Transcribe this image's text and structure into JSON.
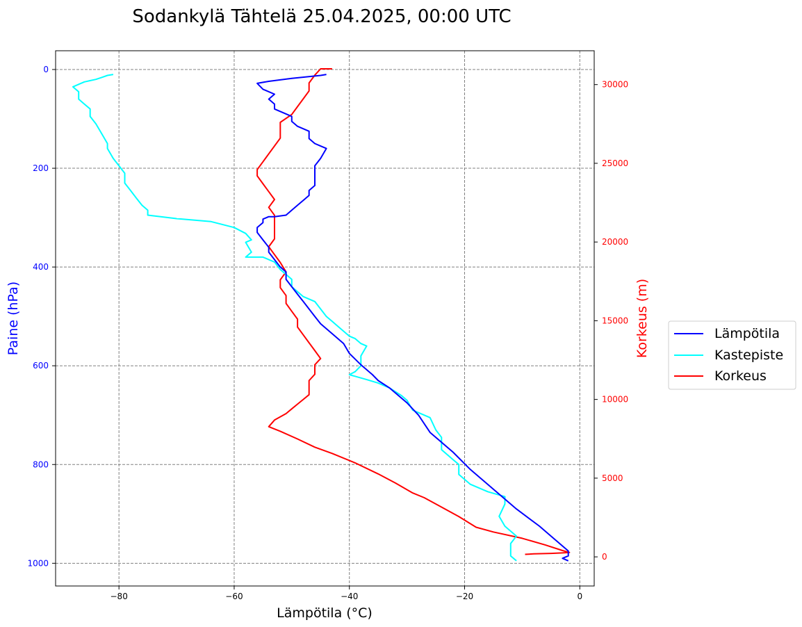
{
  "chart_data": {
    "type": "line",
    "title": "Sodankylä Tähtelä 25.04.2025, 00:00 UTC",
    "xlabel": "Lämpötila (°C)",
    "ylabel": "Paine (hPa)",
    "ylabel_right": "Korkeus (m)",
    "xlim": [
      -91,
      2.5
    ],
    "ylim": [
      1046,
      -38
    ],
    "ylim_right": [
      -1850,
      32150
    ],
    "y_inverted": true,
    "grid": true,
    "legend_position": "outside-right",
    "x_ticks": [
      -80,
      -60,
      -40,
      -20,
      0
    ],
    "x_tick_labels": [
      "−80",
      "−60",
      "−40",
      "−20",
      "0"
    ],
    "y_ticks": [
      0,
      200,
      400,
      600,
      800,
      1000
    ],
    "y_tick_labels": [
      "0",
      "200",
      "400",
      "600",
      "800",
      "1000"
    ],
    "y2_ticks": [
      0,
      5000,
      10000,
      15000,
      20000,
      25000,
      30000
    ],
    "y2_tick_labels": [
      "0",
      "5000",
      "10000",
      "15000",
      "20000",
      "25000",
      "30000"
    ],
    "colors": {
      "left_axis": "#0000ff",
      "right_axis": "#ff0000"
    },
    "series": [
      {
        "name": "Lämpötila",
        "color": "#0000ff",
        "axis": "pressure",
        "points": [
          [
            -2,
            995
          ],
          [
            -3,
            990
          ],
          [
            -2,
            985
          ],
          [
            -2,
            975
          ],
          [
            -3,
            965
          ],
          [
            -5,
            945
          ],
          [
            -7,
            925
          ],
          [
            -11,
            890
          ],
          [
            -15,
            850
          ],
          [
            -19,
            810
          ],
          [
            -22,
            775
          ],
          [
            -26,
            735
          ],
          [
            -28,
            700
          ],
          [
            -30,
            675
          ],
          [
            -33,
            645
          ],
          [
            -35,
            630
          ],
          [
            -36,
            618
          ],
          [
            -38,
            598
          ],
          [
            -40,
            575
          ],
          [
            -41,
            555
          ],
          [
            -43,
            535
          ],
          [
            -45,
            515
          ],
          [
            -46,
            500
          ],
          [
            -47,
            485
          ],
          [
            -48,
            470
          ],
          [
            -49,
            455
          ],
          [
            -50,
            440
          ],
          [
            -51,
            425
          ],
          [
            -51,
            410
          ],
          [
            -52,
            400
          ],
          [
            -53,
            385
          ],
          [
            -54,
            370
          ],
          [
            -54,
            360
          ],
          [
            -55,
            345
          ],
          [
            -56,
            330
          ],
          [
            -56,
            320
          ],
          [
            -55,
            310
          ],
          [
            -55,
            303
          ],
          [
            -54,
            298
          ],
          [
            -53,
            298
          ],
          [
            -51,
            295
          ],
          [
            -50,
            285
          ],
          [
            -49,
            275
          ],
          [
            -48,
            265
          ],
          [
            -47,
            255
          ],
          [
            -47,
            245
          ],
          [
            -46,
            235
          ],
          [
            -46,
            220
          ],
          [
            -46,
            205
          ],
          [
            -46,
            195
          ],
          [
            -45,
            180
          ],
          [
            -44,
            160
          ],
          [
            -45,
            155
          ],
          [
            -46,
            150
          ],
          [
            -47,
            140
          ],
          [
            -47,
            125
          ],
          [
            -49,
            115
          ],
          [
            -50,
            105
          ],
          [
            -50,
            95
          ],
          [
            -51,
            90
          ],
          [
            -53,
            80
          ],
          [
            -53,
            70
          ],
          [
            -54,
            60
          ],
          [
            -53,
            50
          ],
          [
            -55,
            40
          ],
          [
            -56,
            28
          ],
          [
            -54,
            24
          ],
          [
            -50,
            18
          ],
          [
            -45,
            12
          ],
          [
            -44,
            10
          ]
        ]
      },
      {
        "name": "Kastepiste",
        "color": "#00ffff",
        "axis": "pressure",
        "points": [
          [
            -11,
            995
          ],
          [
            -12,
            985
          ],
          [
            -12,
            960
          ],
          [
            -11,
            945
          ],
          [
            -13,
            925
          ],
          [
            -14,
            905
          ],
          [
            -13,
            880
          ],
          [
            -13,
            865
          ],
          [
            -16,
            855
          ],
          [
            -19,
            840
          ],
          [
            -21,
            820
          ],
          [
            -21,
            800
          ],
          [
            -22,
            790
          ],
          [
            -24,
            770
          ],
          [
            -24,
            745
          ],
          [
            -25,
            730
          ],
          [
            -26,
            705
          ],
          [
            -29,
            690
          ],
          [
            -30,
            670
          ],
          [
            -31,
            660
          ],
          [
            -33,
            645
          ],
          [
            -35,
            635
          ],
          [
            -37,
            628
          ],
          [
            -40,
            618
          ],
          [
            -39,
            612
          ],
          [
            -38,
            600
          ],
          [
            -38,
            580
          ],
          [
            -37,
            560
          ],
          [
            -38,
            555
          ],
          [
            -39,
            545
          ],
          [
            -40,
            540
          ],
          [
            -42,
            520
          ],
          [
            -43,
            510
          ],
          [
            -44,
            500
          ],
          [
            -45,
            485
          ],
          [
            -46,
            470
          ],
          [
            -48,
            460
          ],
          [
            -49,
            450
          ],
          [
            -50,
            440
          ],
          [
            -50,
            425
          ],
          [
            -51,
            415
          ],
          [
            -52,
            405
          ],
          [
            -53,
            390
          ],
          [
            -55,
            380
          ],
          [
            -58,
            380
          ],
          [
            -57,
            370
          ],
          [
            -58,
            350
          ],
          [
            -57,
            345
          ],
          [
            -58,
            332
          ],
          [
            -60,
            320
          ],
          [
            -64,
            308
          ],
          [
            -70,
            302
          ],
          [
            -75,
            295
          ],
          [
            -75,
            285
          ],
          [
            -76,
            275
          ],
          [
            -77,
            260
          ],
          [
            -78,
            245
          ],
          [
            -79,
            230
          ],
          [
            -79,
            210
          ],
          [
            -80,
            195
          ],
          [
            -81,
            180
          ],
          [
            -82,
            160
          ],
          [
            -82,
            150
          ],
          [
            -83,
            130
          ],
          [
            -84,
            110
          ],
          [
            -85,
            95
          ],
          [
            -85,
            80
          ],
          [
            -86,
            70
          ],
          [
            -87,
            60
          ],
          [
            -87,
            45
          ],
          [
            -88,
            35
          ],
          [
            -87,
            30
          ],
          [
            -86,
            25
          ],
          [
            -84,
            20
          ],
          [
            -83,
            16
          ],
          [
            -82,
            12
          ],
          [
            -81,
            10
          ]
        ]
      },
      {
        "name": "Korkeus",
        "color": "#ff0000",
        "axis": "height",
        "points": [
          [
            -9.5,
            160
          ],
          [
            -8,
            190
          ],
          [
            -5,
            220
          ],
          [
            -3,
            250
          ],
          [
            -1.8,
            280
          ],
          [
            -3,
            400
          ],
          [
            -6,
            760
          ],
          [
            -10,
            1180
          ],
          [
            -15,
            1580
          ],
          [
            -18,
            1880
          ],
          [
            -21,
            2560
          ],
          [
            -24,
            3160
          ],
          [
            -27,
            3760
          ],
          [
            -29,
            4060
          ],
          [
            -32,
            4690
          ],
          [
            -35,
            5270
          ],
          [
            -39,
            5970
          ],
          [
            -43,
            6570
          ],
          [
            -46,
            6970
          ],
          [
            -49,
            7490
          ],
          [
            -52,
            7980
          ],
          [
            -54,
            8270
          ],
          [
            -53,
            8690
          ],
          [
            -51,
            9100
          ],
          [
            -50,
            9400
          ],
          [
            -49,
            9700
          ],
          [
            -48,
            10000
          ],
          [
            -47,
            10300
          ],
          [
            -47,
            10800
          ],
          [
            -47,
            11200
          ],
          [
            -46,
            11600
          ],
          [
            -46,
            12200
          ],
          [
            -45,
            12600
          ],
          [
            -46,
            13100
          ],
          [
            -47,
            13600
          ],
          [
            -48,
            14100
          ],
          [
            -49,
            14600
          ],
          [
            -49,
            15100
          ],
          [
            -50,
            15600
          ],
          [
            -51,
            16100
          ],
          [
            -51,
            16600
          ],
          [
            -52,
            17100
          ],
          [
            -52,
            17600
          ],
          [
            -51,
            18100
          ],
          [
            -52,
            18700
          ],
          [
            -53,
            19200
          ],
          [
            -54,
            19700
          ],
          [
            -53,
            20200
          ],
          [
            -53,
            20700
          ],
          [
            -53,
            21200
          ],
          [
            -53,
            21700
          ],
          [
            -54,
            22200
          ],
          [
            -53,
            22700
          ],
          [
            -54,
            23200
          ],
          [
            -55,
            23700
          ],
          [
            -56,
            24200
          ],
          [
            -56,
            24600
          ],
          [
            -55,
            25100
          ],
          [
            -54,
            25600
          ],
          [
            -53,
            26100
          ],
          [
            -52,
            26600
          ],
          [
            -52,
            27100
          ],
          [
            -52,
            27600
          ],
          [
            -50,
            28100
          ],
          [
            -49,
            28600
          ],
          [
            -48,
            29100
          ],
          [
            -47,
            29600
          ],
          [
            -47,
            30100
          ],
          [
            -46,
            30600
          ],
          [
            -45,
            31000
          ],
          [
            -43,
            31000
          ]
        ]
      }
    ]
  }
}
